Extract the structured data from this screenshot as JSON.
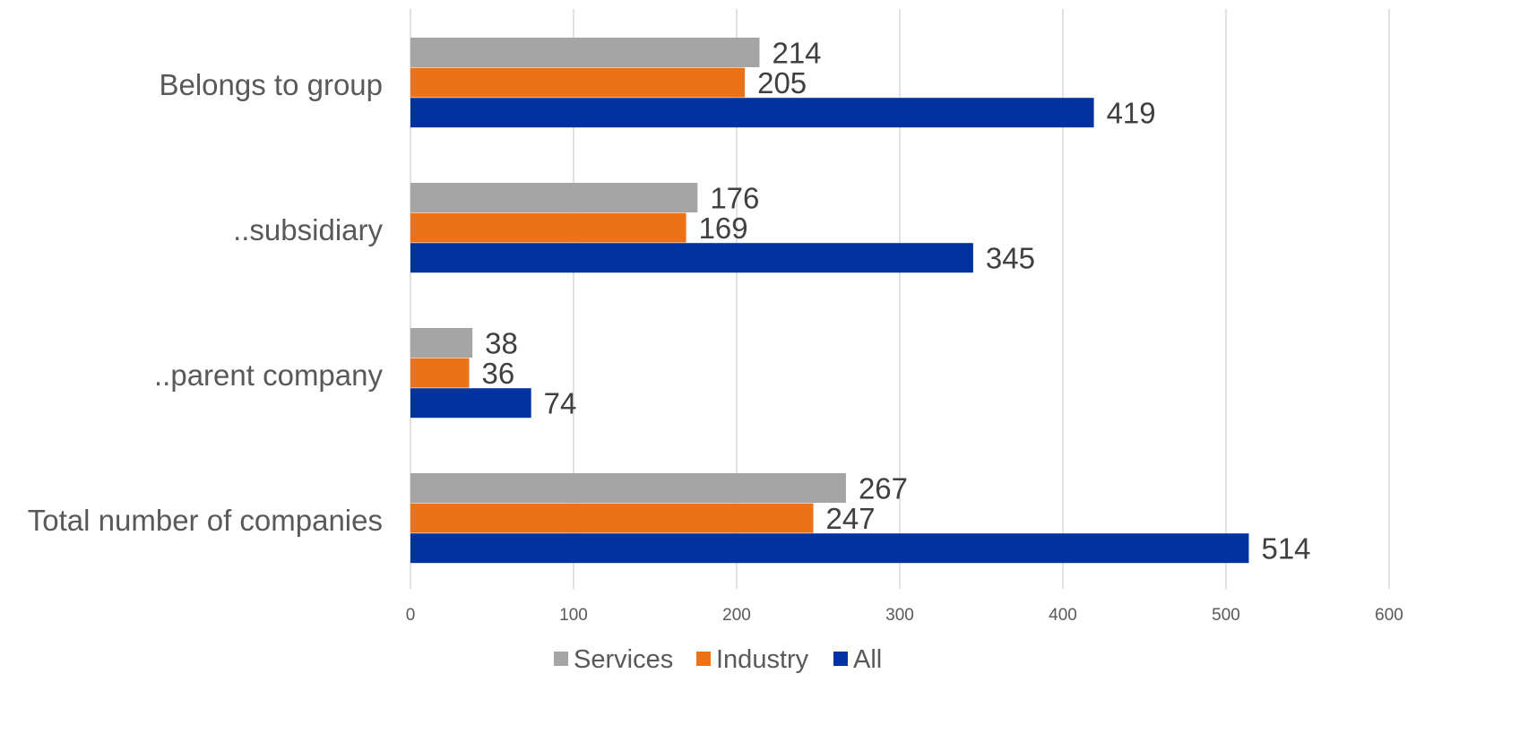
{
  "chart_data": {
    "type": "bar",
    "orientation": "horizontal",
    "categories": [
      "Belongs to group",
      "..subsidiary",
      "..parent company",
      "Total number of companies"
    ],
    "series": [
      {
        "name": "Services",
        "color": "#a5a5a5",
        "values": [
          214,
          176,
          38,
          267
        ]
      },
      {
        "name": "Industry",
        "color": "#ed7117",
        "values": [
          205,
          169,
          36,
          247
        ]
      },
      {
        "name": "All",
        "color": "#0033a0",
        "values": [
          419,
          345,
          74,
          514
        ]
      }
    ],
    "x_ticks": [
      "0",
      "100",
      "200",
      "300",
      "400",
      "500",
      "600"
    ],
    "xlim": [
      0,
      600
    ],
    "grid": true,
    "legend_position": "bottom",
    "colors": {
      "gridline": "#d9d9d9",
      "category_label": "#595959",
      "value_label": "#404040",
      "tick_label": "#595959"
    }
  }
}
